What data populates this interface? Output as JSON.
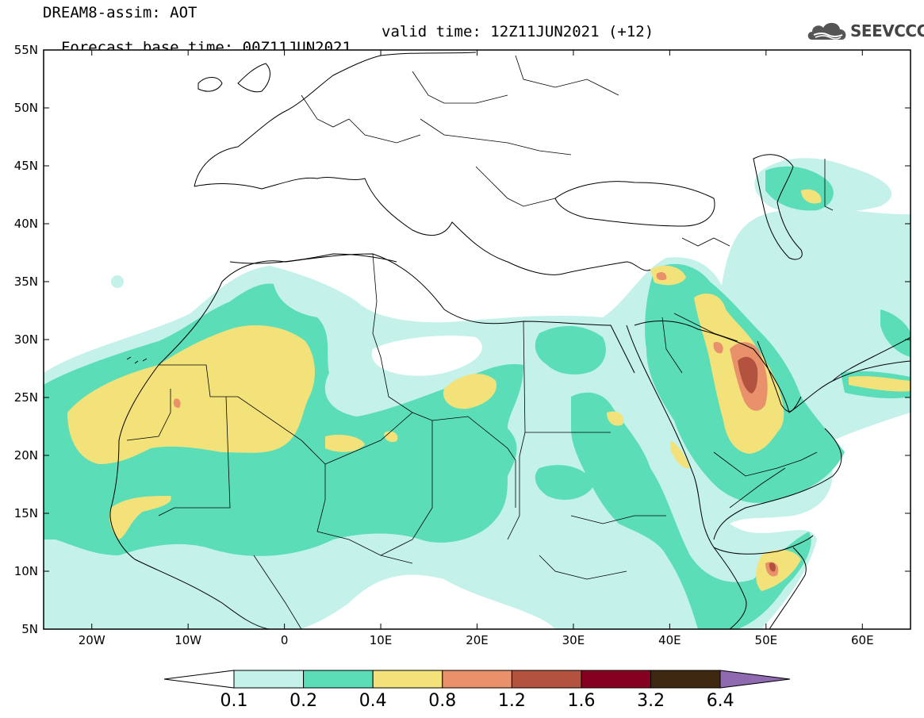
{
  "header": {
    "line1": "DREAM8-assim: AOT",
    "base_time": "Forecast base time: 00Z11JUN2021",
    "valid_time": "valid time: 12Z11JUN2021 (+12)"
  },
  "logo": {
    "text": "SEEVCCC",
    "icon": "cloud-icon"
  },
  "map": {
    "lon_range": [
      -25,
      65
    ],
    "lat_range": [
      5,
      55
    ],
    "lat_labels": [
      "55N",
      "50N",
      "45N",
      "40N",
      "35N",
      "30N",
      "25N",
      "20N",
      "15N",
      "10N",
      "5N"
    ],
    "lon_labels": [
      "20W",
      "10W",
      "0",
      "10E",
      "20E",
      "30E",
      "40E",
      "50E",
      "60E"
    ],
    "field": "Aerosol optical thickness (AOT)"
  },
  "colorbar": {
    "labels": [
      "0.1",
      "0.2",
      "0.4",
      "0.8",
      "1.2",
      "1.6",
      "3.2",
      "6.4"
    ],
    "colors": [
      "#c4f1ea",
      "#5bdeb7",
      "#f3e27a",
      "#e9916a",
      "#b3533f",
      "#860022",
      "#3f2811",
      "#8f6ab1"
    ],
    "under_color": "#ffffff"
  },
  "colors": {
    "c1": "#c4f1ea",
    "c2": "#5bdeb7",
    "c3": "#f3e27a",
    "c4": "#e9916a",
    "c5": "#b3533f"
  }
}
